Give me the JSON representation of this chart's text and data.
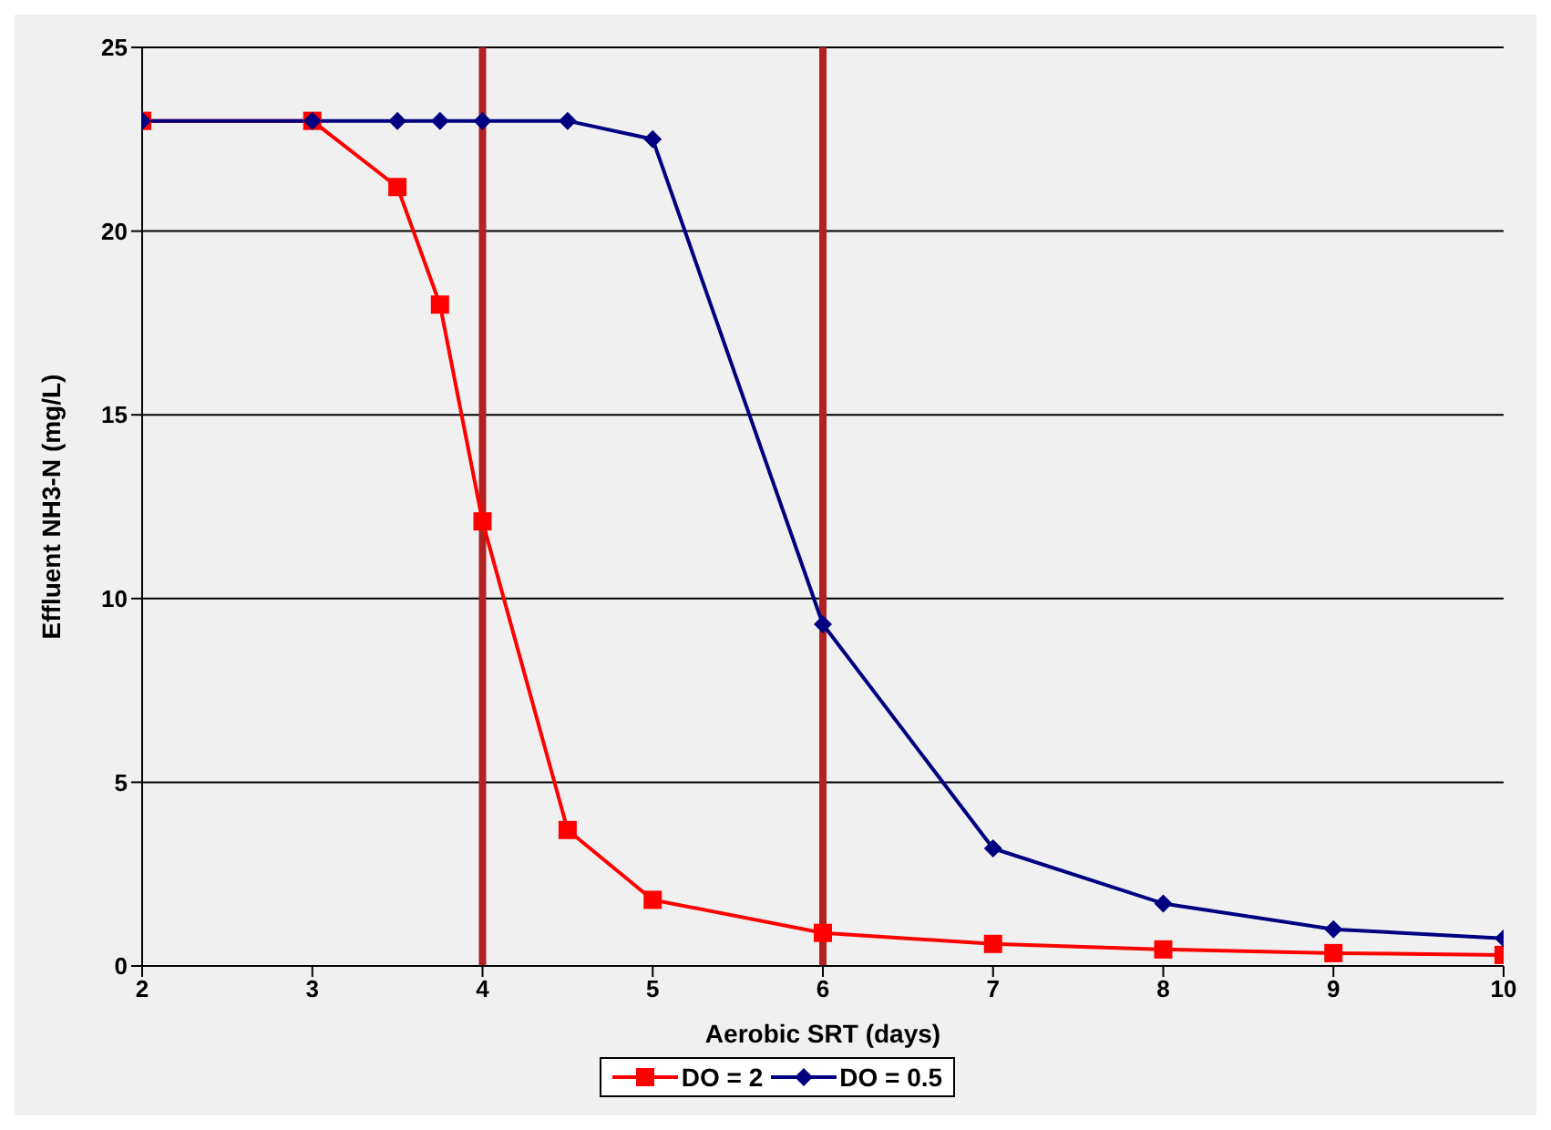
{
  "chart_data": {
    "type": "line",
    "xlabel": "Aerobic SRT (days)",
    "ylabel": "Effluent NH3-N (mg/L)",
    "xlim": [
      2,
      10
    ],
    "xticks": [
      2,
      3,
      4,
      5,
      6,
      7,
      8,
      9,
      10
    ],
    "ylim": [
      0,
      25
    ],
    "yticks": [
      0,
      5,
      10,
      15,
      20,
      25
    ],
    "grid": "y",
    "legend": "bottom",
    "series": [
      {
        "name": "DO = 2",
        "color": "#ff0000",
        "marker": "square",
        "x": [
          2,
          3,
          3.5,
          3.75,
          4,
          4.5,
          5,
          6,
          7,
          8,
          9,
          10
        ],
        "values": [
          23,
          23,
          21.2,
          18,
          12.1,
          3.7,
          1.8,
          0.9,
          0.6,
          0.45,
          0.35,
          0.3
        ]
      },
      {
        "name": "DO = 0.5",
        "color": "#000080",
        "marker": "diamond",
        "x": [
          2,
          3,
          3.5,
          3.75,
          4,
          4.5,
          5,
          6,
          7,
          8,
          9,
          10
        ],
        "values": [
          23,
          23,
          23,
          23,
          23,
          23,
          22.5,
          9.3,
          3.2,
          1.7,
          1.0,
          0.75
        ]
      }
    ],
    "ref_lines": [
      {
        "axis": "x",
        "value": 4,
        "color": "#b22222"
      },
      {
        "axis": "x",
        "value": 6,
        "color": "#b22222"
      }
    ]
  }
}
